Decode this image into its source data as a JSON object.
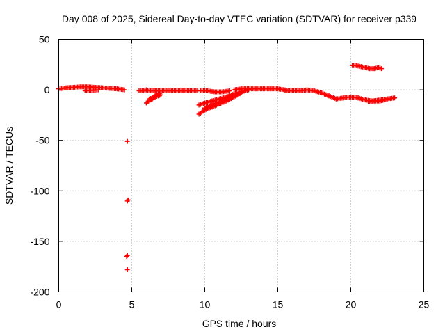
{
  "chart_data": {
    "type": "scatter",
    "title": "Day 008 of 2025, Sidereal Day-to-day VTEC variation (SDTVAR) for receiver p339",
    "xlabel": "GPS time / hours",
    "ylabel": "SDTVAR / TECUs",
    "xlim": [
      0,
      25
    ],
    "ylim": [
      -200,
      50
    ],
    "xticks": [
      0,
      5,
      10,
      15,
      20,
      25
    ],
    "yticks": [
      -200,
      -150,
      -100,
      -50,
      0,
      50
    ],
    "grid": true,
    "marker": "plus",
    "color": "#ff0000",
    "series": [
      {
        "name": "SDTVAR",
        "segments": [
          {
            "x": [
              0.0,
              0.5,
              1.0,
              1.5,
              2.0,
              2.5,
              3.0,
              3.5,
              4.0,
              4.5
            ],
            "y": [
              1,
              2,
              2.5,
              3,
              3,
              2.5,
              2,
              1.5,
              1,
              0
            ]
          },
          {
            "x": [
              1.8,
              2.2,
              2.7
            ],
            "y": [
              -1,
              -0.5,
              0
            ]
          },
          {
            "x": [
              5.5,
              5.8,
              6.0,
              6.3,
              6.6,
              6.9,
              7.2,
              7.6,
              8.0,
              8.5,
              9.0,
              9.5
            ],
            "y": [
              -1,
              -1,
              0,
              -1,
              -1,
              -1,
              -1,
              -1,
              -1,
              -1,
              -1,
              -1
            ]
          },
          {
            "x": [
              6.0,
              6.2,
              6.4,
              6.6,
              6.8,
              7.0
            ],
            "y": [
              -13,
              -11,
              -9,
              -7,
              -6,
              -5
            ]
          },
          {
            "x": [
              6.2,
              6.4,
              6.6,
              6.8,
              7.0
            ],
            "y": [
              -9,
              -8,
              -6,
              -4,
              -3
            ]
          },
          {
            "x": [
              9.6,
              10.0,
              10.5,
              11.0,
              11.5,
              12.0,
              12.5
            ],
            "y": [
              -24,
              -20,
              -17,
              -14,
              -11,
              -7,
              -3
            ]
          },
          {
            "x": [
              9.6,
              10.0,
              10.5,
              11.0,
              11.5,
              12.0,
              12.5,
              13.0
            ],
            "y": [
              -15,
              -13,
              -11,
              -9,
              -7,
              -4,
              -2,
              0
            ]
          },
          {
            "x": [
              10.0,
              10.5,
              11.0,
              11.5,
              12.0,
              12.5
            ],
            "y": [
              -18,
              -15,
              -12,
              -9,
              -6,
              -3
            ]
          },
          {
            "x": [
              9.7,
              10.2,
              10.7,
              11.2,
              11.7
            ],
            "y": [
              -1,
              -1,
              -2,
              -2,
              -1
            ]
          },
          {
            "x": [
              12.0,
              12.5,
              13.0,
              13.5,
              14.0,
              14.5,
              15.0,
              15.5
            ],
            "y": [
              0,
              1,
              1,
              1,
              1,
              1,
              1,
              0
            ]
          },
          {
            "x": [
              15.5,
              16.0,
              16.5,
              17.0,
              17.5,
              18.0,
              18.5,
              19.0
            ],
            "y": [
              -1,
              -1,
              -1,
              0,
              -1,
              -3,
              -6,
              -9
            ]
          },
          {
            "x": [
              19.0,
              19.5,
              20.0,
              20.5,
              21.0,
              21.5,
              22.0,
              22.5,
              23.0
            ],
            "y": [
              -9,
              -8,
              -7,
              -8,
              -10,
              -11,
              -10,
              -9,
              -8
            ]
          },
          {
            "x": [
              21.2,
              21.6,
              22.0,
              22.3
            ],
            "y": [
              -12,
              -11,
              -11,
              -10
            ]
          },
          {
            "x": [
              20.1,
              20.4,
              20.7,
              21.0,
              21.3,
              21.6,
              21.9,
              22.1
            ],
            "y": [
              24,
              24,
              23,
              22,
              21,
              21,
              22,
              21
            ]
          }
        ],
        "points": [
          {
            "x": 4.7,
            "y": -51
          },
          {
            "x": 4.7,
            "y": -110
          },
          {
            "x": 4.75,
            "y": -109
          },
          {
            "x": 4.7,
            "y": -164
          },
          {
            "x": 4.65,
            "y": -165
          },
          {
            "x": 4.7,
            "y": -178
          }
        ]
      }
    ]
  }
}
